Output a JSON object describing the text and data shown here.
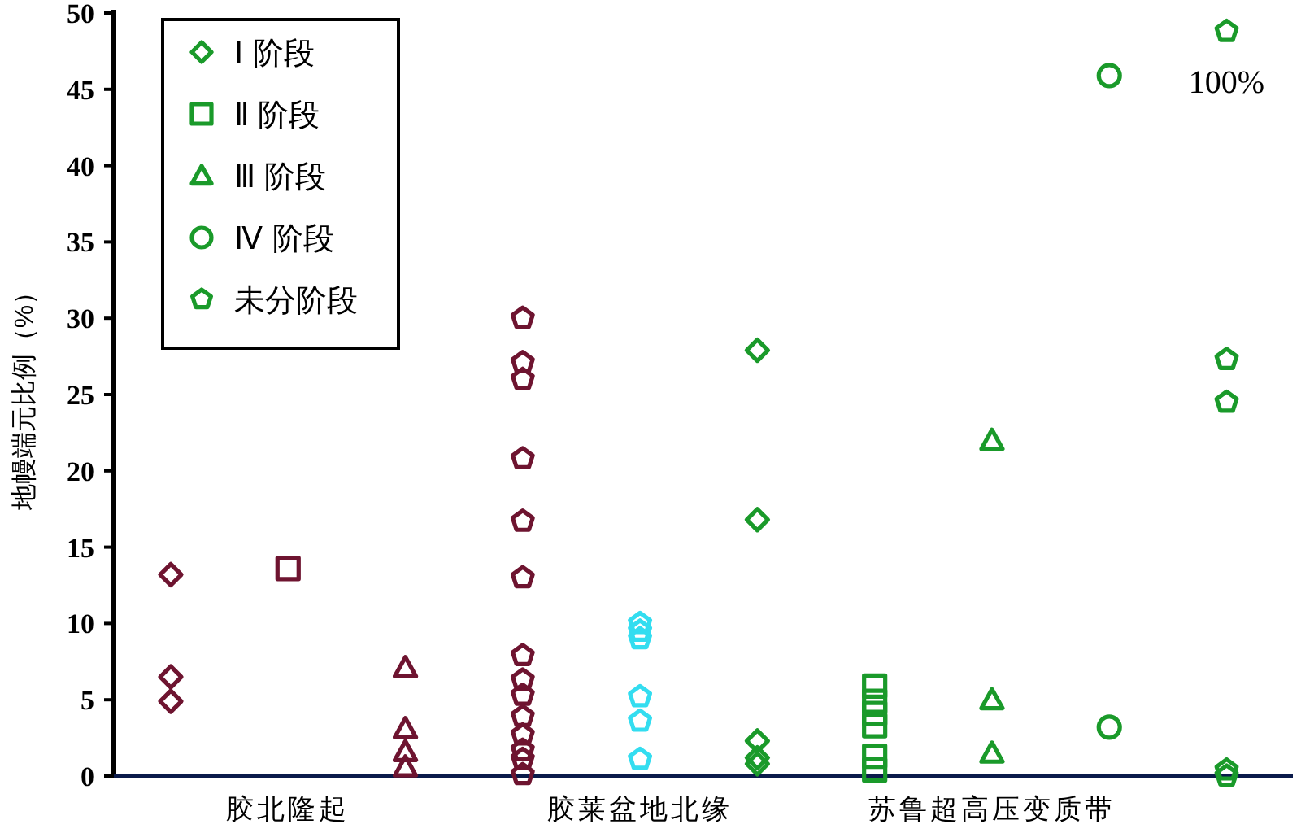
{
  "chart_data": {
    "type": "scatter",
    "ylabel": "地幔端元比例（%）",
    "categories": [
      null,
      "胶北隆起",
      null,
      null,
      "胶莱盆地北缘",
      null,
      null,
      "苏鲁超高压变质带",
      null,
      null
    ],
    "ylim": [
      0,
      50
    ],
    "yticks": [
      0,
      5,
      10,
      15,
      20,
      25,
      30,
      35,
      40,
      45,
      50
    ],
    "grid": false,
    "legend": "top left",
    "series": [
      {
        "name": "Ⅰ 阶段",
        "marker": "diamond",
        "color": "#1a9a2a",
        "values": [
          null,
          null,
          null,
          null,
          null,
          27.9,
          null,
          null,
          null,
          null
        ]
      },
      {
        "marker": "diamond",
        "values": [
          13.2,
          null,
          null,
          null,
          null,
          16.8,
          null,
          null,
          null,
          null
        ],
        "colors": [
          "#6e1430",
          null,
          null,
          null,
          null,
          "#1a9a2a",
          null,
          null,
          null,
          null
        ]
      },
      {
        "marker": "diamond",
        "values": [
          6.5,
          null,
          null,
          null,
          null,
          2.3,
          null,
          null,
          null,
          null
        ],
        "colors": [
          "#6e1430",
          null,
          null,
          null,
          null,
          "#1a9a2a",
          null,
          null,
          null,
          null
        ]
      },
      {
        "marker": "diamond",
        "values": [
          4.9,
          null,
          null,
          null,
          null,
          1.2,
          null,
          null,
          null,
          null
        ],
        "colors": [
          "#6e1430",
          null,
          null,
          null,
          null,
          "#1a9a2a",
          null,
          null,
          null,
          null
        ]
      },
      {
        "marker": "diamond",
        "values": [
          null,
          null,
          null,
          null,
          null,
          0.8,
          null,
          null,
          null,
          null
        ],
        "colors": [
          null,
          null,
          null,
          null,
          null,
          "#1a9a2a",
          null,
          null,
          null,
          null
        ]
      },
      {
        "name": "Ⅱ 阶段",
        "marker": "square",
        "color": "#1a9a2a",
        "values": [
          null,
          null,
          null,
          null,
          null,
          null,
          5.9,
          null,
          null,
          null
        ]
      },
      {
        "marker": "square",
        "values": [
          null,
          13.6,
          null,
          null,
          null,
          null,
          4.9,
          null,
          null,
          null
        ],
        "colors": [
          null,
          "#6e1430",
          null,
          null,
          null,
          null,
          "#1a9a2a",
          null,
          null,
          null
        ]
      },
      {
        "marker": "square",
        "values": [
          null,
          null,
          null,
          null,
          null,
          null,
          4.1,
          null,
          null,
          null
        ],
        "colors": [
          null,
          null,
          null,
          null,
          null,
          null,
          "#1a9a2a",
          null,
          null,
          null
        ]
      },
      {
        "marker": "square",
        "values": [
          null,
          null,
          null,
          null,
          null,
          null,
          3.3,
          null,
          null,
          null
        ],
        "colors": [
          null,
          null,
          null,
          null,
          null,
          null,
          "#1a9a2a",
          null,
          null,
          null
        ]
      },
      {
        "marker": "square",
        "values": [
          null,
          null,
          null,
          null,
          null,
          null,
          1.3,
          null,
          null,
          null
        ],
        "colors": [
          null,
          null,
          null,
          null,
          null,
          null,
          "#1a9a2a",
          null,
          null,
          null
        ]
      },
      {
        "marker": "square",
        "values": [
          null,
          null,
          null,
          null,
          null,
          null,
          0.4,
          null,
          null,
          null
        ],
        "colors": [
          null,
          null,
          null,
          null,
          null,
          null,
          "#1a9a2a",
          null,
          null,
          null
        ]
      },
      {
        "name": "Ⅲ 阶段",
        "marker": "triangle",
        "color": "#1a9a2a",
        "values": [
          null,
          null,
          null,
          null,
          null,
          null,
          null,
          22.0,
          null,
          null
        ]
      },
      {
        "marker": "triangle",
        "values": [
          null,
          null,
          7.1,
          null,
          null,
          null,
          null,
          5.0,
          null,
          null
        ],
        "colors": [
          null,
          null,
          "#6e1430",
          null,
          null,
          null,
          null,
          "#1a9a2a",
          null,
          null
        ]
      },
      {
        "marker": "triangle",
        "values": [
          null,
          null,
          3.1,
          null,
          null,
          null,
          null,
          1.5,
          null,
          null
        ],
        "colors": [
          null,
          null,
          "#6e1430",
          null,
          null,
          null,
          null,
          "#1a9a2a",
          null,
          null
        ]
      },
      {
        "marker": "triangle",
        "values": [
          null,
          null,
          1.6,
          null,
          null,
          null,
          null,
          null,
          null,
          null
        ],
        "colors": [
          null,
          null,
          "#6e1430",
          null,
          null,
          null,
          null,
          null,
          null,
          null
        ]
      },
      {
        "marker": "triangle",
        "values": [
          null,
          null,
          0.6,
          null,
          null,
          null,
          null,
          null,
          null,
          null
        ],
        "colors": [
          null,
          null,
          "#6e1430",
          null,
          null,
          null,
          null,
          null,
          null,
          null
        ]
      },
      {
        "name": "Ⅳ 阶段",
        "marker": "circle",
        "color": "#1a9a2a",
        "values": [
          null,
          null,
          null,
          null,
          null,
          null,
          null,
          null,
          45.9,
          null
        ]
      },
      {
        "marker": "circle",
        "values": [
          null,
          null,
          null,
          null,
          null,
          null,
          null,
          null,
          3.2,
          null
        ],
        "colors": [
          null,
          null,
          null,
          null,
          null,
          null,
          null,
          null,
          "#1a9a2a",
          null
        ]
      },
      {
        "name": "未分阶段",
        "color": "#1a9a2a",
        "values": [
          null,
          null,
          null,
          null,
          null,
          null,
          null,
          null,
          null,
          48.8
        ]
      },
      {
        "values": [
          null,
          null,
          null,
          30.0,
          10.0,
          null,
          null,
          null,
          null,
          27.3
        ],
        "colors": [
          null,
          null,
          null,
          "#6e1430",
          "#33ddf0",
          null,
          null,
          null,
          null,
          "#1a9a2a"
        ]
      },
      {
        "values": [
          null,
          null,
          null,
          27.1,
          9.5,
          null,
          null,
          null,
          null,
          24.5
        ],
        "colors": [
          null,
          null,
          null,
          "#6e1430",
          "#33ddf0",
          null,
          null,
          null,
          null,
          "#1a9a2a"
        ]
      },
      {
        "values": [
          null,
          null,
          null,
          26.0,
          9.0,
          null,
          null,
          null,
          null,
          0.4
        ],
        "colors": [
          null,
          null,
          null,
          "#6e1430",
          "#33ddf0",
          null,
          null,
          null,
          null,
          "#1a9a2a"
        ]
      },
      {
        "values": [
          null,
          null,
          null,
          20.8,
          5.2,
          null,
          null,
          null,
          null,
          0.0
        ],
        "colors": [
          null,
          null,
          null,
          "#6e1430",
          "#33ddf0",
          null,
          null,
          null,
          null,
          "#1a9a2a"
        ]
      },
      {
        "values": [
          null,
          null,
          null,
          16.7,
          3.6,
          null,
          null,
          null,
          null,
          null
        ],
        "colors": [
          null,
          null,
          null,
          "#6e1430",
          "#33ddf0",
          null,
          null,
          null,
          null,
          null
        ]
      },
      {
        "values": [
          null,
          null,
          null,
          13.0,
          1.1,
          null,
          null,
          null,
          null,
          null
        ],
        "colors": [
          null,
          null,
          null,
          "#6e1430",
          "#33ddf0",
          null,
          null,
          null,
          null,
          null
        ]
      },
      {
        "values": [
          null,
          null,
          null,
          7.9,
          null,
          null,
          null,
          null,
          null,
          null
        ],
        "colors": [
          null,
          null,
          null,
          "#6e1430",
          null,
          null,
          null,
          null,
          null,
          null
        ]
      },
      {
        "values": [
          null,
          null,
          null,
          6.3,
          null,
          null,
          null,
          null,
          null,
          null
        ],
        "colors": [
          null,
          null,
          null,
          "#6e1430",
          null,
          null,
          null,
          null,
          null,
          null
        ]
      },
      {
        "values": [
          null,
          null,
          null,
          5.3,
          null,
          null,
          null,
          null,
          null,
          null
        ],
        "colors": [
          null,
          null,
          null,
          "#6e1430",
          null,
          null,
          null,
          null,
          null,
          null
        ]
      },
      {
        "values": [
          null,
          null,
          null,
          3.9,
          null,
          null,
          null,
          null,
          null,
          null
        ],
        "colors": [
          null,
          null,
          null,
          "#6e1430",
          null,
          null,
          null,
          null,
          null,
          null
        ]
      },
      {
        "values": [
          null,
          null,
          null,
          2.7,
          null,
          null,
          null,
          null,
          null,
          null
        ],
        "colors": [
          null,
          null,
          null,
          "#6e1430",
          null,
          null,
          null,
          null,
          null,
          null
        ]
      },
      {
        "values": [
          null,
          null,
          null,
          1.7,
          null,
          null,
          null,
          null,
          null,
          null
        ],
        "colors": [
          null,
          null,
          null,
          "#6e1430",
          null,
          null,
          null,
          null,
          null,
          null
        ]
      },
      {
        "values": [
          null,
          null,
          null,
          1.1,
          null,
          null,
          null,
          null,
          null,
          null
        ],
        "colors": [
          null,
          null,
          null,
          "#6e1430",
          null,
          null,
          null,
          null,
          null,
          null
        ]
      },
      {
        "values": [
          null,
          null,
          null,
          0.1,
          null,
          null,
          null,
          null,
          null,
          null
        ],
        "colors": [
          null,
          null,
          null,
          "#6e1430",
          null,
          null,
          null,
          null,
          null,
          null
        ]
      }
    ],
    "annotations": [
      "100%"
    ]
  }
}
